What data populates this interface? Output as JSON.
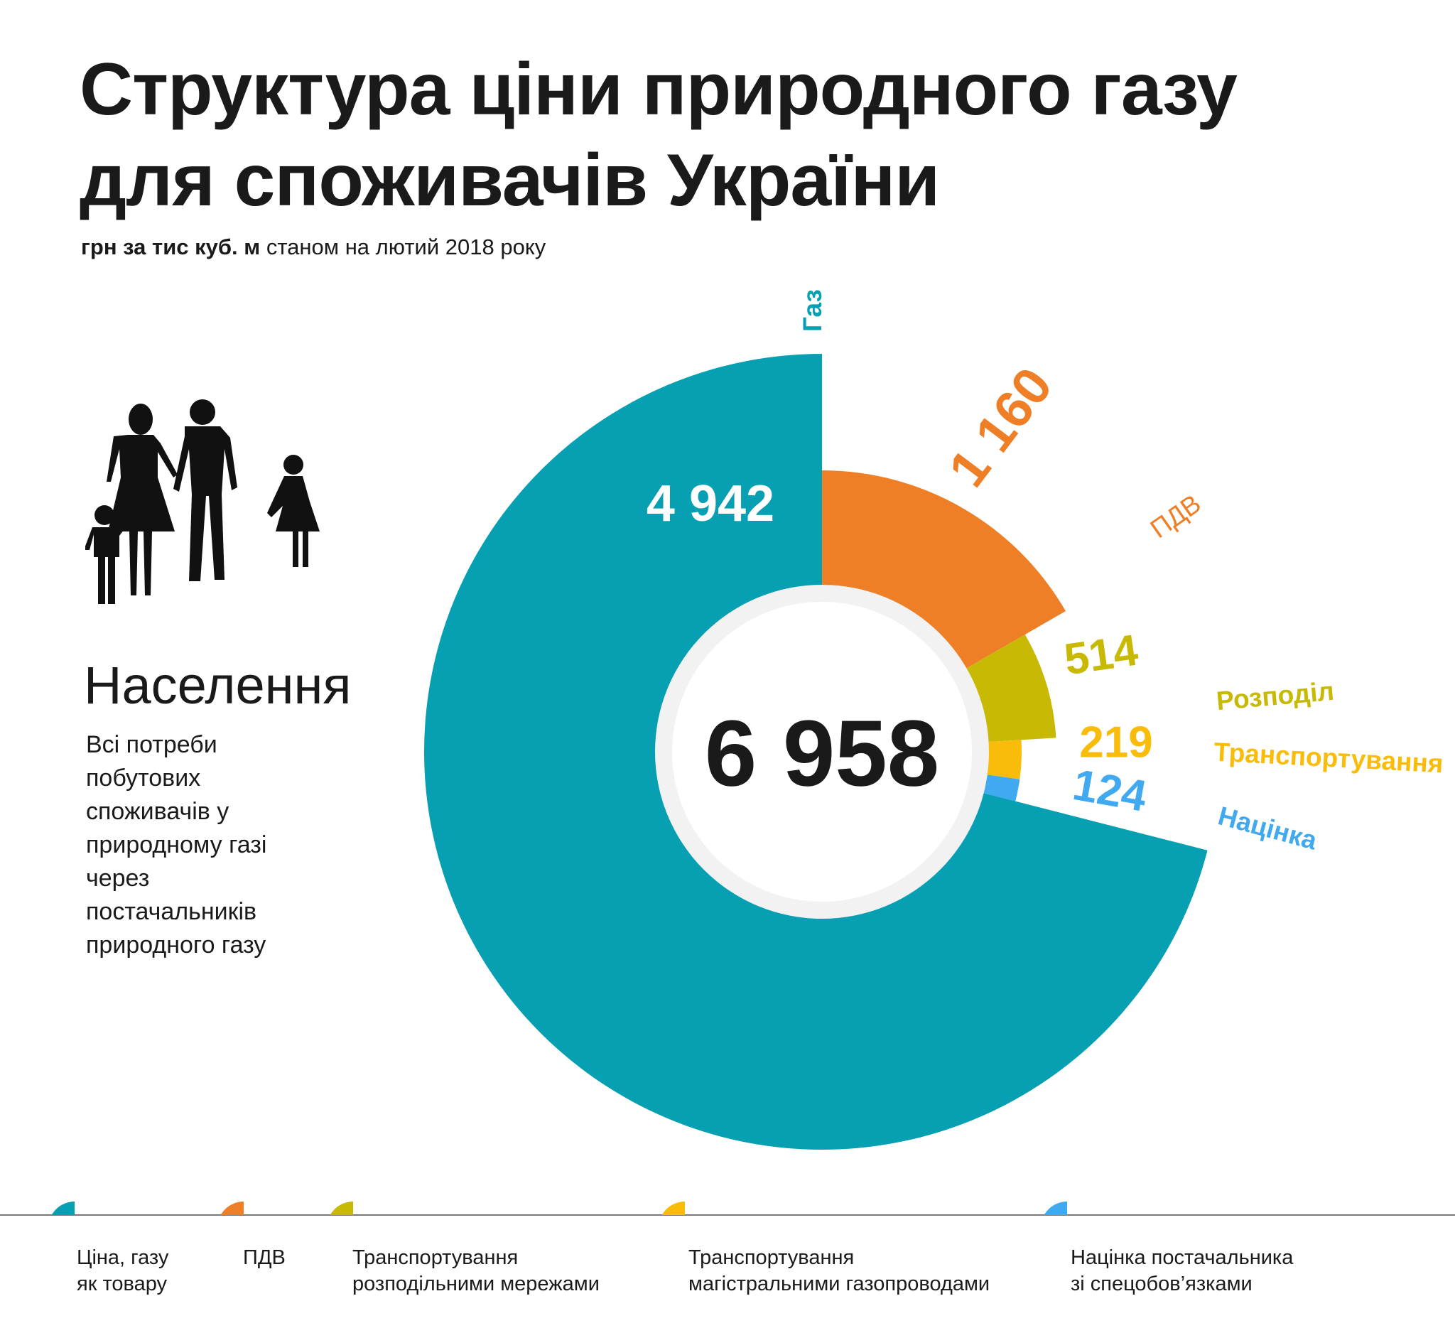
{
  "header": {
    "title_line1": "Структура ціни природного газу",
    "title_line2": "для споживачів України",
    "subtitle_bold": "грн за тис куб. м",
    "subtitle_rest": " станом на лютий 2018 року"
  },
  "segment": {
    "title": "Населення",
    "description": "Всі потреби побутових споживачів у природному газі через постачальників природного газу",
    "icon": "family-silhouette-icon"
  },
  "chart_data": {
    "type": "pie",
    "variant": "polar-area-donut",
    "total": 6958,
    "total_label": "6 958",
    "series": [
      {
        "key": "gas",
        "label": "Газ",
        "value": 4942,
        "value_label": "4 942",
        "legend": "Ціна, газу\nяк товару",
        "color": "#079fb2"
      },
      {
        "key": "vat",
        "label": "ПДВ",
        "value": 1160,
        "value_label": "1 160",
        "legend": "ПДВ",
        "color": "#ef7f26"
      },
      {
        "key": "distribution",
        "label": "Розподіл",
        "value": 514,
        "value_label": "514",
        "legend": "Транспортування\nрозподільними мережами",
        "color": "#c8b905"
      },
      {
        "key": "transport",
        "label": "Транспортування",
        "value": 219,
        "value_label": "219",
        "legend": "Транспортування\nмагістральними газопроводами",
        "color": "#f9bc0b"
      },
      {
        "key": "markup",
        "label": "Націнка",
        "value": 124,
        "value_label": "124",
        "legend": "Націнка постачальника\nзі спецобов’язками",
        "color": "#41a9f0"
      }
    ]
  }
}
